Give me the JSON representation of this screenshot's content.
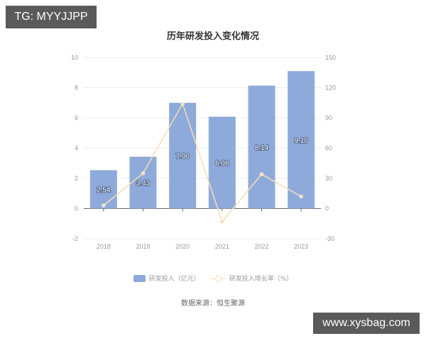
{
  "watermarks": {
    "top_left": "TG: MYYJJPP",
    "bottom_right": "www.xysbag.com"
  },
  "title": "历年研发投入变化情况",
  "legend": {
    "bar": "研发投入（亿元）",
    "line": "研发投入增长率（%）"
  },
  "source": "数据来源：恒生聚源",
  "colors": {
    "bar": "#8eaadb",
    "line": "#f5deb3",
    "grid": "#eeeeee",
    "axis": "#666666"
  },
  "chart_data": {
    "type": "bar",
    "title": "历年研发投入变化情况",
    "categories": [
      "2018",
      "2019",
      "2020",
      "2021",
      "2022",
      "2023"
    ],
    "series": [
      {
        "name": "研发投入（亿元）",
        "type": "bar",
        "axis": "left",
        "values": [
          2.54,
          3.43,
          7.0,
          6.08,
          8.14,
          9.1
        ]
      },
      {
        "name": "研发投入增长率（%）",
        "type": "line",
        "axis": "right",
        "values": [
          3,
          35,
          104,
          -13,
          34,
          12
        ]
      }
    ],
    "left_axis": {
      "ylim": [
        -2,
        10
      ],
      "ticks": [
        "10",
        "8",
        "6",
        "4",
        "2",
        "0",
        "-2"
      ]
    },
    "right_axis": {
      "ylim": [
        -30,
        150
      ],
      "ticks": [
        "150",
        "120",
        "90",
        "60",
        "30",
        "0",
        "-30"
      ]
    },
    "bar_labels": [
      "2.54",
      "3.43",
      "7.00",
      "6.08",
      "8.14",
      "9.10"
    ],
    "grid": true,
    "legend_position": "bottom",
    "source": "数据来源：恒生聚源"
  }
}
